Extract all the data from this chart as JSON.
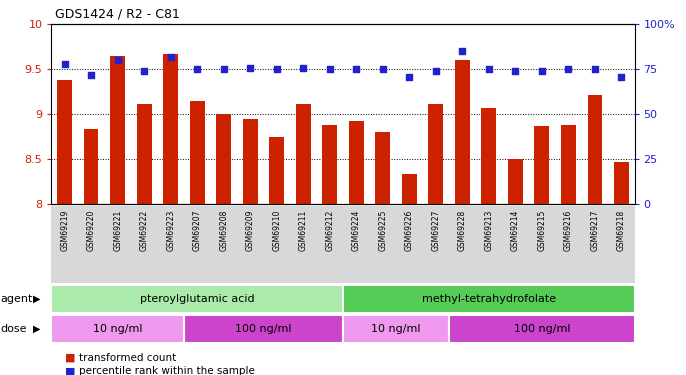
{
  "title": "GDS1424 / R2 - C81",
  "samples": [
    "GSM69219",
    "GSM69220",
    "GSM69221",
    "GSM69222",
    "GSM69223",
    "GSM69207",
    "GSM69208",
    "GSM69209",
    "GSM69210",
    "GSM69211",
    "GSM69212",
    "GSM69224",
    "GSM69225",
    "GSM69226",
    "GSM69227",
    "GSM69228",
    "GSM69213",
    "GSM69214",
    "GSM69215",
    "GSM69216",
    "GSM69217",
    "GSM69218"
  ],
  "transformed_count": [
    9.38,
    8.84,
    9.65,
    9.12,
    9.67,
    9.15,
    9.0,
    8.95,
    8.75,
    9.11,
    8.88,
    8.93,
    8.8,
    8.34,
    9.12,
    9.6,
    9.07,
    8.5,
    8.87,
    8.88,
    9.22,
    8.47
  ],
  "percentile_rank": [
    78,
    72,
    80,
    74,
    82,
    75,
    75,
    76,
    75,
    76,
    75,
    75,
    75,
    71,
    74,
    85,
    75,
    74,
    74,
    75,
    75,
    71
  ],
  "ylim_left": [
    8,
    10
  ],
  "ylim_right": [
    0,
    100
  ],
  "yticks_left": [
    8,
    8.5,
    9,
    9.5,
    10
  ],
  "ytick_labels_left": [
    "8",
    "8.5",
    "9",
    "9.5",
    "10"
  ],
  "yticks_right": [
    0,
    25,
    50,
    75,
    100
  ],
  "ytick_labels_right": [
    "0",
    "25",
    "50",
    "75",
    "100%"
  ],
  "bar_color": "#cc2200",
  "dot_color": "#2222cc",
  "bg_color": "#d8d8d8",
  "plot_bg": "#ffffff",
  "agent_groups": [
    {
      "label": "pteroylglutamic acid",
      "start": 0,
      "end": 10,
      "color": "#aaeaaa"
    },
    {
      "label": "methyl-tetrahydrofolate",
      "start": 11,
      "end": 21,
      "color": "#55cc55"
    }
  ],
  "dose_groups": [
    {
      "label": "10 ng/ml",
      "start": 0,
      "end": 4,
      "color": "#ee99ee"
    },
    {
      "label": "100 ng/ml",
      "start": 5,
      "end": 10,
      "color": "#cc44cc"
    },
    {
      "label": "10 ng/ml",
      "start": 11,
      "end": 14,
      "color": "#ee99ee"
    },
    {
      "label": "100 ng/ml",
      "start": 15,
      "end": 21,
      "color": "#cc44cc"
    }
  ],
  "legend_bar_label": "transformed count",
  "legend_dot_label": "percentile rank within the sample",
  "agent_label": "agent",
  "dose_label": "dose"
}
